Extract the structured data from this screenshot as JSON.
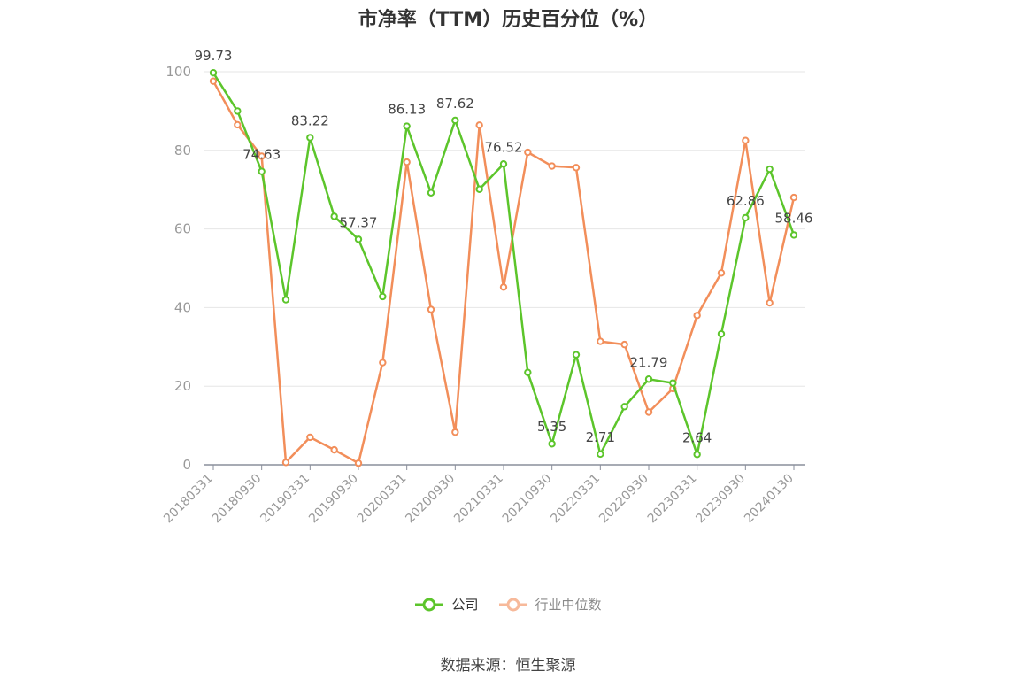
{
  "chart_data": {
    "type": "line",
    "title": "市净率（TTM）历史百分位（%）",
    "xlabel": "",
    "ylabel": "",
    "ylim": [
      0,
      100
    ],
    "yticks": [
      0,
      20,
      40,
      60,
      80,
      100
    ],
    "grid": true,
    "legend_position": "bottom",
    "x": [
      "20180331",
      "20180630",
      "20180930",
      "20181231",
      "20190331",
      "20190630",
      "20190930",
      "20191231",
      "20200331",
      "20200630",
      "20200930",
      "20201231",
      "20210331",
      "20210630",
      "20210930",
      "20211231",
      "20220331",
      "20220630",
      "20220930",
      "20221231",
      "20230331",
      "20230630",
      "20230930",
      "20231231",
      "20240130"
    ],
    "xtick_labels": [
      "20180331",
      "20180930",
      "20190331",
      "20190930",
      "20200331",
      "20200930",
      "20210331",
      "20210930",
      "20220331",
      "20220930",
      "20230331",
      "20230930",
      "20240130"
    ],
    "series": [
      {
        "name": "公司",
        "color": "#5cc52b",
        "values": [
          99.73,
          90.0,
          74.63,
          42.0,
          83.22,
          63.2,
          57.37,
          42.8,
          86.13,
          69.2,
          87.62,
          70.1,
          76.52,
          23.5,
          5.35,
          28.0,
          2.71,
          14.8,
          21.79,
          20.8,
          2.64,
          33.3,
          62.86,
          75.2,
          58.46
        ],
        "labels": {
          "0": "99.73",
          "2": "74.63",
          "4": "83.22",
          "6": "57.37",
          "8": "86.13",
          "10": "87.62",
          "12": "76.52",
          "14": "5.35",
          "16": "2.71",
          "18": "21.79",
          "20": "2.64",
          "22": "62.86",
          "24": "58.46"
        }
      },
      {
        "name": "行业中位数",
        "color": "#f28e5a",
        "values": [
          97.6,
          86.5,
          78.5,
          0.6,
          7.0,
          3.8,
          0.4,
          26.0,
          77.0,
          39.5,
          8.3,
          86.4,
          45.2,
          79.5,
          76.0,
          75.6,
          31.4,
          30.6,
          13.4,
          19.4,
          38.0,
          48.8,
          82.5,
          41.2,
          68.0
        ]
      }
    ]
  },
  "legend": {
    "company": "公司",
    "industry": "行业中位数"
  },
  "source": "数据来源：恒生聚源"
}
